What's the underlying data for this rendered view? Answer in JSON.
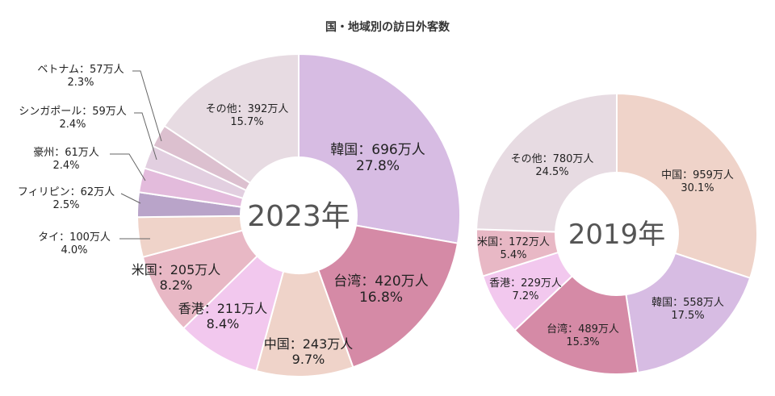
{
  "chart_data": [
    {
      "type": "pie",
      "title": "国・地域別の訪日外客数",
      "center_label": "2023年",
      "slices": [
        {
          "name": "韓国",
          "value_text": "696万人",
          "value": 696,
          "percent": "27.8%",
          "color": "#d7bce3"
        },
        {
          "name": "台湾",
          "value_text": "420万人",
          "value": 420,
          "percent": "16.8%",
          "color": "#d58aa6"
        },
        {
          "name": "中国",
          "value_text": "243万人",
          "value": 243,
          "percent": "9.7%",
          "color": "#efd3c9"
        },
        {
          "name": "香港",
          "value_text": "211万人",
          "value": 211,
          "percent": "8.4%",
          "color": "#f2c8ee"
        },
        {
          "name": "米国",
          "value_text": "205万人",
          "value": 205,
          "percent": "8.2%",
          "color": "#e8b8c5"
        },
        {
          "name": "タイ",
          "value_text": "100万人",
          "value": 100,
          "percent": "4.0%",
          "color": "#efd3c9"
        },
        {
          "name": "フィリピン",
          "value_text": "62万人",
          "value": 62,
          "percent": "2.5%",
          "color": "#b9a4c9"
        },
        {
          "name": "豪州",
          "value_text": "61万人",
          "value": 61,
          "percent": "2.4%",
          "color": "#e3bbdc"
        },
        {
          "name": "シンガポール",
          "value_text": "59万人",
          "value": 59,
          "percent": "2.4%",
          "color": "#e2cfe0"
        },
        {
          "name": "ベトナム",
          "value_text": "57万人",
          "value": 57,
          "percent": "2.3%",
          "color": "#dcc0cf"
        },
        {
          "name": "その他",
          "value_text": "392万人",
          "value": 392,
          "percent": "15.7%",
          "color": "#e7dbe2"
        }
      ]
    },
    {
      "type": "pie",
      "center_label": "2019年",
      "slices": [
        {
          "name": "中国",
          "value_text": "959万人",
          "value": 959,
          "percent": "30.1%",
          "color": "#efd3c9"
        },
        {
          "name": "韓国",
          "value_text": "558万人",
          "value": 558,
          "percent": "17.5%",
          "color": "#d7bce3"
        },
        {
          "name": "台湾",
          "value_text": "489万人",
          "value": 489,
          "percent": "15.3%",
          "color": "#d58aa6"
        },
        {
          "name": "香港",
          "value_text": "229万人",
          "value": 229,
          "percent": "7.2%",
          "color": "#f2c8ee"
        },
        {
          "name": "米国",
          "value_text": "172万人",
          "value": 172,
          "percent": "5.4%",
          "color": "#e8b8c5"
        },
        {
          "name": "その他",
          "value_text": "780万人",
          "value": 780,
          "percent": "24.5%",
          "color": "#e7dbe2"
        }
      ]
    }
  ]
}
